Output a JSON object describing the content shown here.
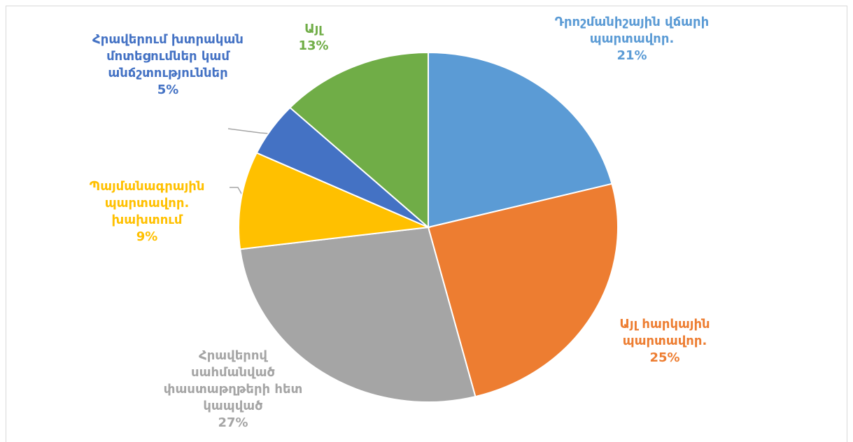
{
  "chart_data": {
    "type": "pie",
    "categories": [
      "Դրոշմանիշային վճարի պարտավոր.",
      "Այլ հարկային պարտավոր.",
      "Հրավերով սահմանված փաստաթղթերի հետ կապված",
      "Պայմանագրային պարտավոր. խախտում",
      "Հրավերում խտրական մոտեցումներ կամ անճշտություններ",
      "Այլ"
    ],
    "values": [
      21,
      25,
      27,
      9,
      5,
      13
    ],
    "value_labels": [
      "21%",
      "25%",
      "27%",
      "9%",
      "5%",
      "13%"
    ],
    "colors": [
      "#5b9bd5",
      "#ed7d31",
      "#a5a5a5",
      "#ffc000",
      "#4472c4",
      "#70ad47"
    ]
  }
}
